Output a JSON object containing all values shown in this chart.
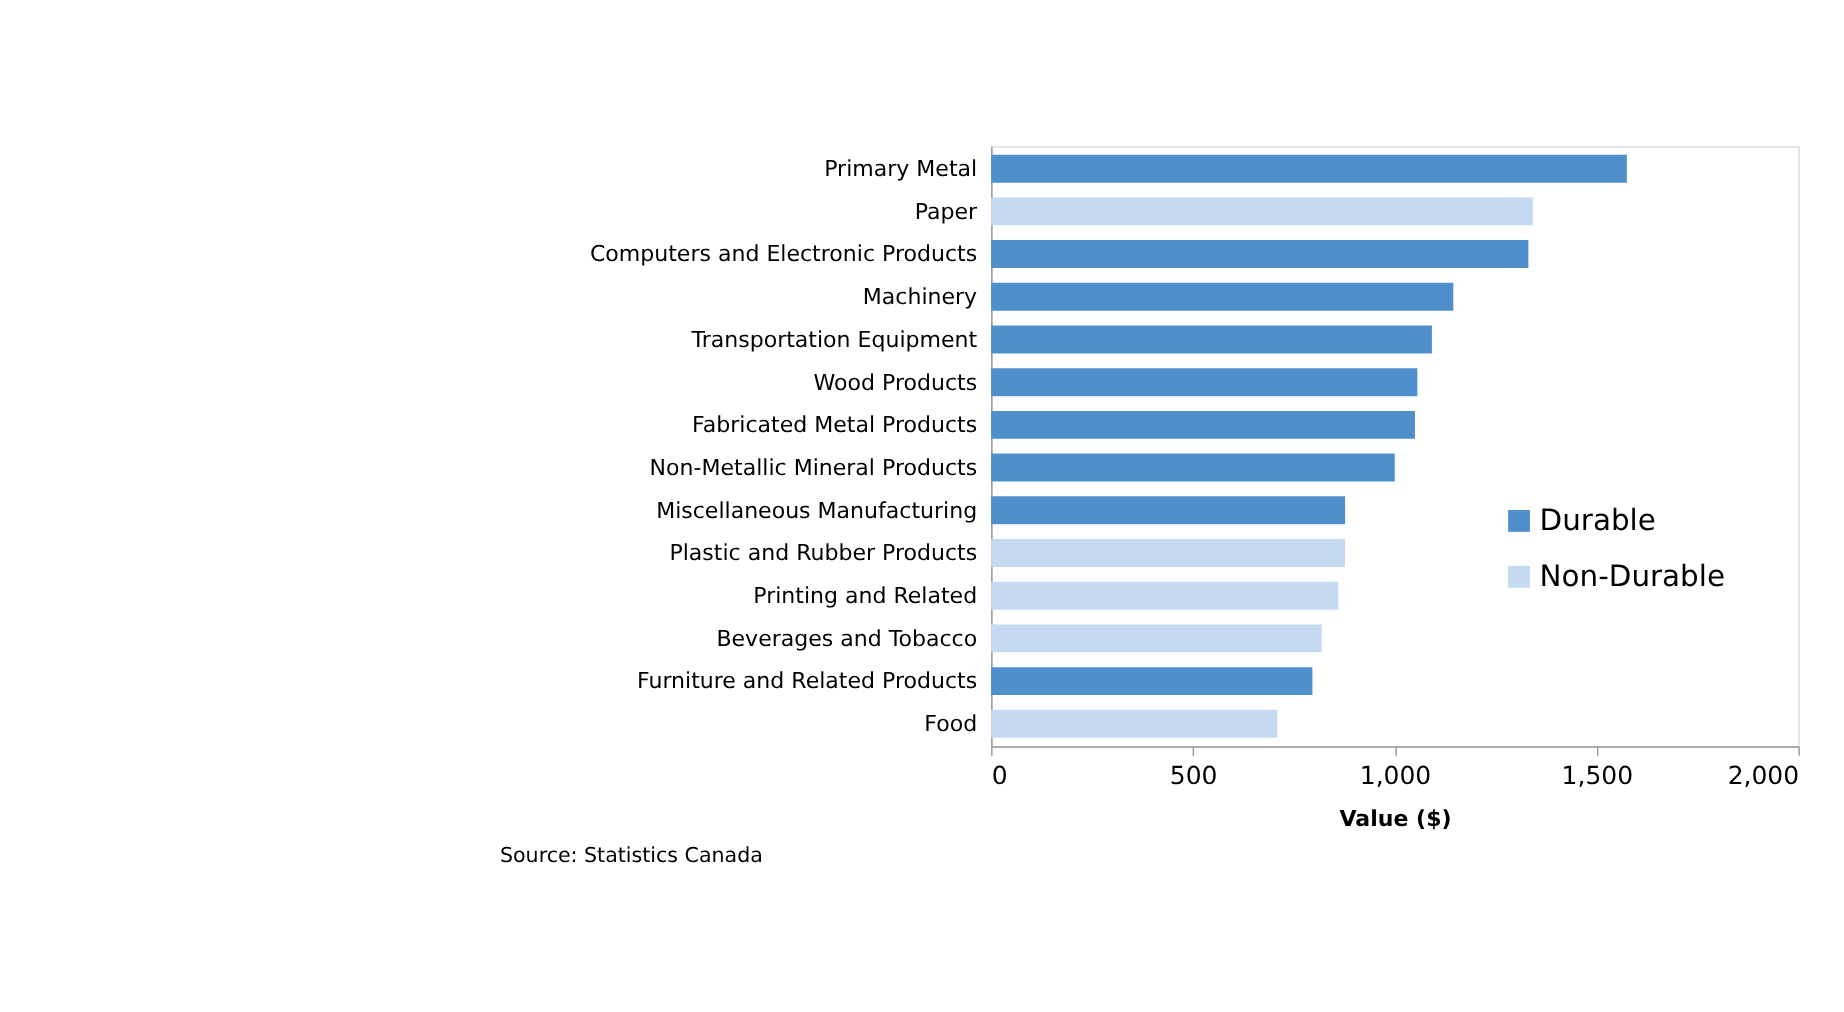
{
  "chart_data": {
    "type": "bar",
    "orientation": "horizontal",
    "categories": [
      "Primary Metal",
      "Paper",
      "Computers and Electronic Products",
      "Machinery",
      "Transportation Equipment",
      "Wood Products",
      "Fabricated Metal Products",
      "Non-Metallic Mineral Products",
      "Miscellaneous Manufacturing",
      "Plastic and Rubber Products",
      "Printing and Related",
      "Beverages and Tobacco",
      "Furniture and Related Products",
      "Food"
    ],
    "series": [
      {
        "name": "Durable",
        "color": "#4f8fcb",
        "values": [
          1575,
          null,
          1331,
          1145,
          1092,
          1056,
          1050,
          1000,
          877,
          null,
          null,
          null,
          796,
          null
        ]
      },
      {
        "name": "Non-Durable",
        "color": "#c5d9f0",
        "values": [
          null,
          1342,
          null,
          null,
          null,
          null,
          null,
          null,
          null,
          877,
          860,
          819,
          null,
          709
        ]
      }
    ],
    "xlabel": "Value ($)",
    "xlim": [
      0,
      2000
    ],
    "xticks": [
      0,
      500,
      {
        "value": 1000,
        "label": "1,000"
      },
      {
        "value": 1500,
        "label": "1,500"
      },
      {
        "value": 2000,
        "label": "2,000"
      }
    ],
    "annotations": [
      "Source: Statistics Canada"
    ],
    "legend": "right",
    "grid": false
  }
}
